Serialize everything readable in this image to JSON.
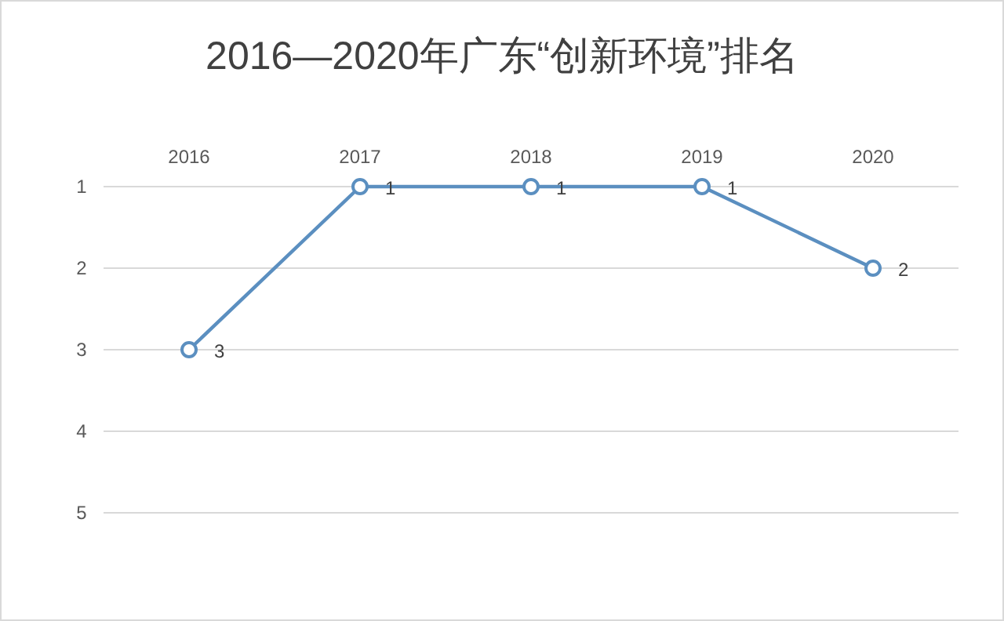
{
  "chart_data": {
    "type": "line",
    "title": "2016—2020年广东“创新环境”排名",
    "categories": [
      "2016",
      "2017",
      "2018",
      "2019",
      "2020"
    ],
    "values": [
      3,
      1,
      1,
      1,
      2
    ],
    "color": "#5b8fc0",
    "ylim": [
      5,
      1
    ],
    "yticks": [
      1,
      2,
      3,
      4,
      5
    ],
    "grid": "y",
    "marker": "circle",
    "data_labels": true
  }
}
